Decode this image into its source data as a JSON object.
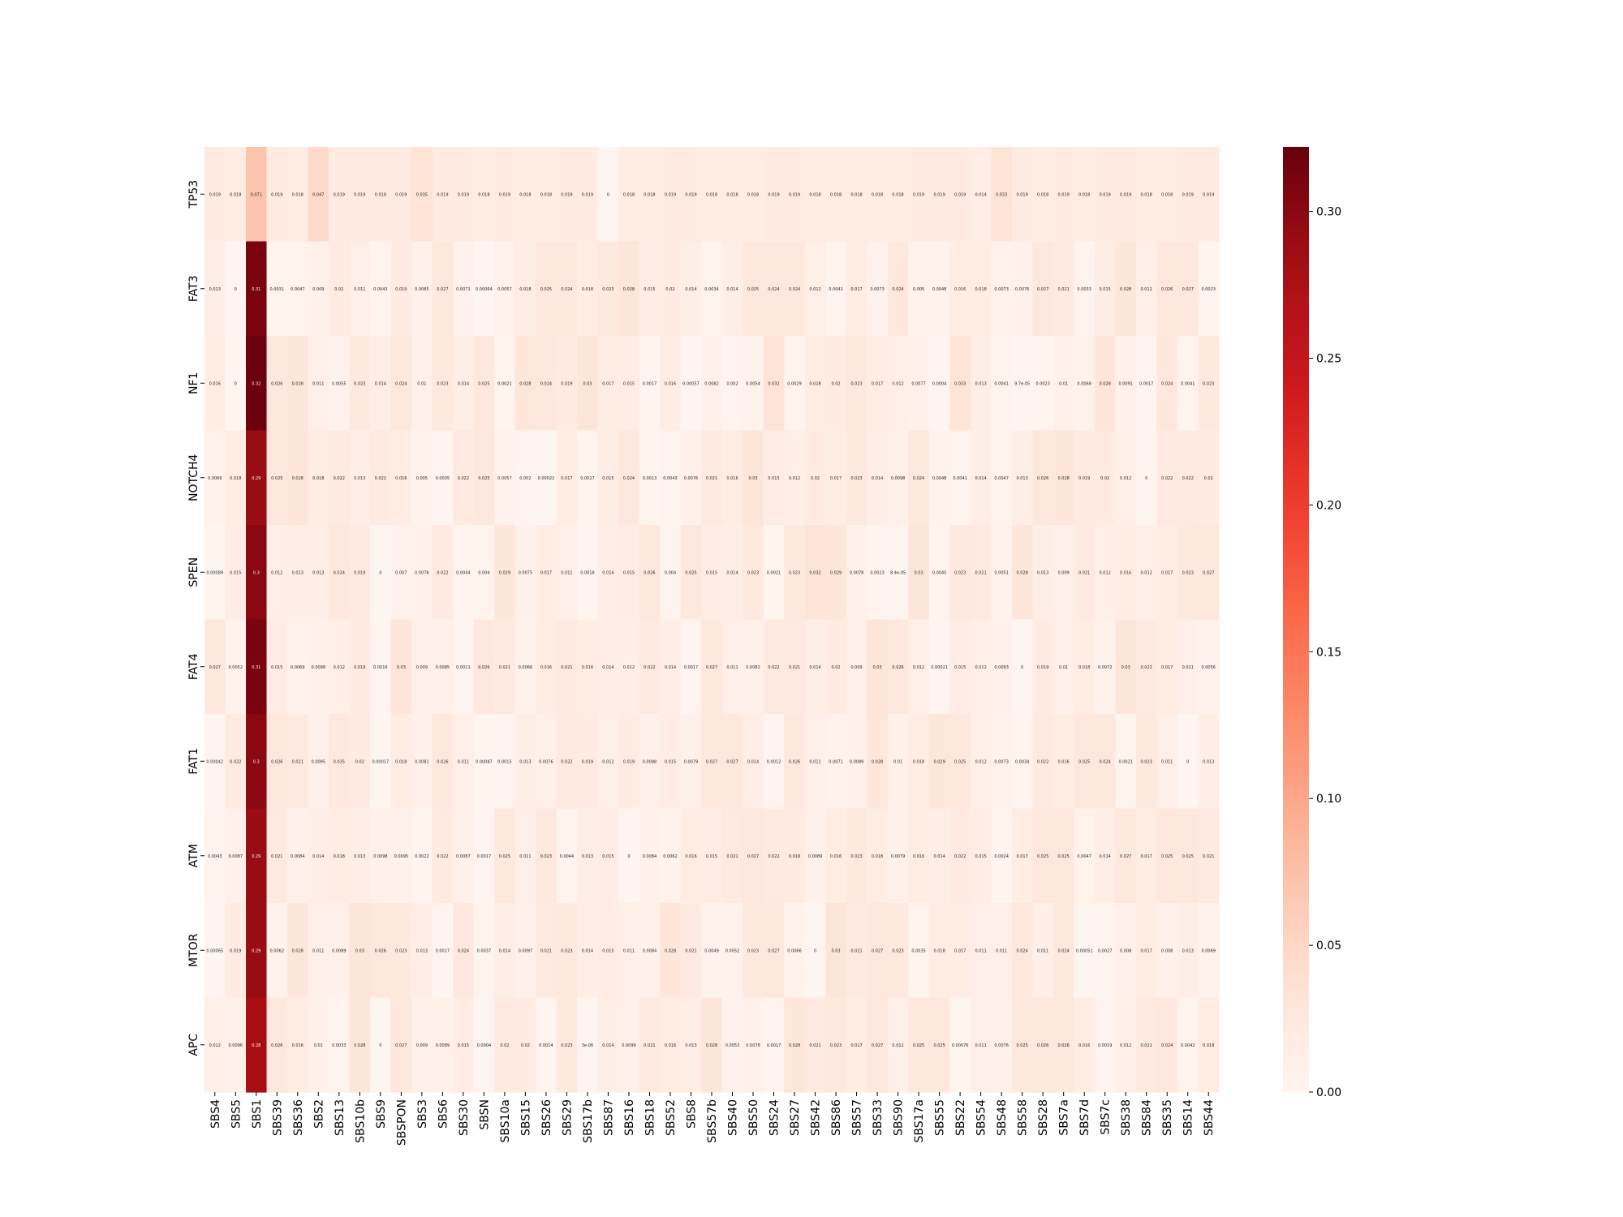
{
  "chart_data": {
    "type": "heatmap",
    "title": "",
    "xlabel": "",
    "ylabel": "",
    "colormap": "Reds",
    "colors": {
      "low": "#fff5f0",
      "high": "#67000d"
    },
    "vmin": 0,
    "vmax": 0.322,
    "colorbar_ticks": [
      "0.00",
      "0.05",
      "0.10",
      "0.15",
      "0.20",
      "0.25",
      "0.30"
    ],
    "colorbar_tick_values": [
      0,
      0.05,
      0.1,
      0.15,
      0.2,
      0.25,
      0.3
    ],
    "x_categories": [
      "SBS4",
      "SBS5",
      "SBS1",
      "SBS39",
      "SBS36",
      "SBS2",
      "SBS13",
      "SBS10b",
      "SBS9",
      "SBSPON",
      "SBS3",
      "SBS6",
      "SBS30",
      "SBSN",
      "SBS10a",
      "SBS15",
      "SBS26",
      "SBS29",
      "SBS17b",
      "SBS87",
      "SBS16",
      "SBS18",
      "SBS52",
      "SBS8",
      "SBS57b",
      "SBS40",
      "SBS50",
      "SBS24",
      "SBS27",
      "SBS42",
      "SBS86",
      "SBS57",
      "SBS33",
      "SBS90",
      "SBS17a",
      "SBS55",
      "SBS22",
      "SBS54",
      "SBS48",
      "SBS58",
      "SBS28",
      "SBS7a",
      "SBS7d",
      "SBS7c",
      "SBS38",
      "SBS84",
      "SBS35",
      "SBS14",
      "SBS44"
    ],
    "y_categories": [
      "TP53",
      "FAT3",
      "NF1",
      "NOTCH4",
      "SPEN",
      "FAT4",
      "FAT1",
      "ATM",
      "MTOR",
      "APC"
    ],
    "values": [
      [
        0.019,
        0.018,
        0.071,
        0.019,
        0.018,
        0.047,
        0.019,
        0.019,
        0.019,
        0.019,
        0.035,
        0.019,
        0.019,
        0.018,
        0.019,
        0.018,
        0.018,
        0.019,
        0.019,
        0,
        0.018,
        0.018,
        0.019,
        0.019,
        0.018,
        0.018,
        0.018,
        0.019,
        0.019,
        0.018,
        0.018,
        0.018,
        0.018,
        0.018,
        0.019,
        0.019,
        0.019,
        0.014,
        0.033,
        0.019,
        0.018,
        0.019,
        0.018,
        0.019,
        0.019,
        0.018,
        0.018,
        0.019,
        0.019
      ],
      [
        0.013,
        0,
        0.31,
        0.0031,
        0.0047,
        0.009,
        0.02,
        0.011,
        0.0043,
        0.019,
        0.0085,
        0.027,
        0.0071,
        0.00064,
        0.0057,
        0.018,
        0.025,
        0.024,
        0.018,
        0.023,
        0.028,
        0.015,
        0.02,
        0.014,
        0.0034,
        0.014,
        0.025,
        0.024,
        0.024,
        0.012,
        0.0041,
        0.017,
        0.0073,
        0.024,
        0.005,
        0.0048,
        0.016,
        0.018,
        0.0073,
        0.0076,
        0.027,
        0.021,
        0.0033,
        0.015,
        0.028,
        0.012,
        0.026,
        0.027,
        0.0023
      ],
      [
        0.016,
        0,
        0.32,
        0.026,
        0.028,
        0.011,
        0.0055,
        0.023,
        0.014,
        0.024,
        0.01,
        0.023,
        0.014,
        0.025,
        0.0021,
        0.028,
        0.024,
        0.019,
        0.03,
        0.017,
        0.015,
        0.0017,
        0.016,
        0.00057,
        0.0082,
        0.002,
        0.0054,
        0.032,
        0.0029,
        0.018,
        0.02,
        0.023,
        0.017,
        0.012,
        0.0077,
        0.0004,
        0.033,
        0.013,
        0.0041,
        9.7e-05,
        0.0023,
        0.01,
        0.0068,
        0.028,
        0.0091,
        0.0017,
        0.024,
        0.0041,
        0.023
      ],
      [
        0.0066,
        0.018,
        0.29,
        0.025,
        0.028,
        0.018,
        0.022,
        0.013,
        0.022,
        0.016,
        0.005,
        0.0005,
        0.022,
        0.025,
        0.0057,
        0.002,
        0.00022,
        0.017,
        0.0027,
        0.015,
        0.024,
        0.0013,
        0.0043,
        0.0076,
        0.021,
        0.016,
        0.03,
        0.015,
        0.012,
        0.02,
        0.017,
        0.023,
        0.014,
        0.0098,
        0.024,
        0.0048,
        0.0041,
        0.014,
        0.0047,
        0.013,
        0.026,
        0.028,
        0.019,
        0.02,
        0.012,
        0,
        0.022,
        0.022,
        0.02
      ],
      [
        0.00089,
        0.015,
        0.3,
        0.012,
        0.013,
        0.013,
        0.024,
        0.019,
        0,
        0.007,
        0.0078,
        0.022,
        0.0044,
        0.004,
        0.029,
        0.0075,
        0.017,
        0.011,
        0.0018,
        0.014,
        0.015,
        0.026,
        0.004,
        0.025,
        0.015,
        0.014,
        0.023,
        0.0021,
        0.023,
        0.032,
        0.029,
        0.0078,
        0.0023,
        8.4e-05,
        0.03,
        0.0045,
        0.023,
        0.021,
        0.0051,
        0.028,
        0.013,
        0.009,
        0.021,
        0.012,
        0.016,
        0.012,
        0.017,
        0.023,
        0.027
      ],
      [
        0.027,
        0.0052,
        0.31,
        0.015,
        0.0069,
        0.0098,
        0.012,
        0.019,
        0.0016,
        0.03,
        0.009,
        0.0085,
        0.0011,
        0.026,
        0.021,
        0.0066,
        0.016,
        0.021,
        0.016,
        0.014,
        0.012,
        0.022,
        0.014,
        0.0017,
        0.027,
        0.011,
        0.0082,
        0.022,
        0.021,
        0.014,
        0.02,
        0.009,
        0.03,
        0.026,
        0.012,
        0.00021,
        0.015,
        0.012,
        0.0093,
        0,
        0.019,
        0.01,
        0.018,
        0.0072,
        0.03,
        0.022,
        0.017,
        0.011,
        0.0056
      ],
      [
        0.00042,
        0.022,
        0.3,
        0.026,
        0.021,
        0.0095,
        0.025,
        0.02,
        0.00017,
        0.018,
        0.0081,
        0.026,
        0.011,
        0.00087,
        0.0015,
        0.013,
        0.0076,
        0.022,
        0.019,
        0.012,
        0.019,
        0.0088,
        0.015,
        0.0079,
        0.027,
        0.027,
        0.014,
        0.0012,
        0.026,
        0.011,
        0.0071,
        0.0089,
        0.028,
        0.01,
        0.018,
        0.029,
        0.025,
        0.012,
        0.0073,
        0.0034,
        0.022,
        0.016,
        0.025,
        0.024,
        0.0021,
        0.023,
        0.011,
        0,
        0.013
      ],
      [
        0.0043,
        0.0087,
        0.29,
        0.021,
        0.0084,
        0.014,
        0.018,
        0.013,
        0.0098,
        0.0095,
        0.0022,
        0.022,
        0.0087,
        0.0017,
        0.025,
        0.011,
        0.023,
        0.0044,
        0.013,
        0.015,
        0,
        0.0084,
        0.0062,
        0.016,
        0.015,
        0.021,
        0.027,
        0.022,
        0.019,
        0.0089,
        0.016,
        0.023,
        0.018,
        0.0079,
        0.016,
        0.014,
        0.022,
        0.015,
        0.0024,
        0.017,
        0.025,
        0.025,
        0.0047,
        0.014,
        0.027,
        0.017,
        0.025,
        0.025,
        0.021
      ],
      [
        0.00065,
        0.019,
        0.29,
        0.0062,
        0.028,
        0.011,
        0.0089,
        0.03,
        0.026,
        0.023,
        0.013,
        0.0017,
        0.024,
        0.0037,
        0.014,
        0.0097,
        0.021,
        0.023,
        0.014,
        0.015,
        0.011,
        0.0084,
        0.028,
        0.021,
        0.0049,
        0.0052,
        0.023,
        0.027,
        0.0066,
        0,
        0.03,
        0.021,
        0.027,
        0.023,
        0.0035,
        0.018,
        0.017,
        0.011,
        0.011,
        0.024,
        0.011,
        0.024,
        0.00051,
        0.0027,
        0.008,
        0.017,
        0.008,
        0.013,
        0.0069
      ],
      [
        0.012,
        0.0096,
        0.28,
        0.026,
        0.016,
        0.01,
        0.0033,
        0.028,
        0,
        0.027,
        0.009,
        0.0089,
        0.015,
        0.0004,
        0.02,
        0.02,
        0.0014,
        0.023,
        3e-06,
        0.014,
        0.0099,
        0.021,
        0.016,
        0.013,
        0.028,
        0.0053,
        0.0078,
        0.0017,
        0.028,
        0.021,
        0.023,
        0.017,
        0.027,
        0.011,
        0.025,
        0.025,
        0.00076,
        0.011,
        0.0076,
        0.025,
        0.026,
        0.026,
        0.016,
        0.0019,
        0.012,
        0.021,
        0.024,
        0.0042,
        0.018
      ]
    ],
    "annotations": [
      [
        "0.019",
        "0.018",
        "0.071",
        "0.019",
        "0.018",
        "0.047",
        "0.019",
        "0.019",
        "0.019",
        "0.019",
        "0.035",
        "0.019",
        "0.019",
        "0.018",
        "0.019",
        "0.018",
        "0.018",
        "0.019",
        "0.019",
        "0",
        "0.018",
        "0.018",
        "0.019",
        "0.019",
        "0.018",
        "0.018",
        "0.018",
        "0.019",
        "0.019",
        "0.018",
        "0.018",
        "0.018",
        "0.018",
        "0.018",
        "0.019",
        "0.019",
        "0.019",
        "0.014",
        "0.033",
        "0.019",
        "0.018",
        "0.019",
        "0.018",
        "0.019",
        "0.019",
        "0.018",
        "0.018",
        "0.019",
        "0.019"
      ],
      [
        "0.013",
        "0",
        "0.31",
        "0.0031",
        "0.0047",
        "0.009",
        "0.02",
        "0.011",
        "0.0043",
        "0.019",
        "0.0085",
        "0.027",
        "0.0071",
        "0.00064",
        "0.0057",
        "0.018",
        "0.025",
        "0.024",
        "0.018",
        "0.023",
        "0.028",
        "0.015",
        "0.02",
        "0.014",
        "0.0034",
        "0.014",
        "0.025",
        "0.024",
        "0.024",
        "0.012",
        "0.0041",
        "0.017",
        "0.0073",
        "0.024",
        "0.005",
        "0.0048",
        "0.016",
        "0.018",
        "0.0073",
        "0.0076",
        "0.027",
        "0.021",
        "0.0033",
        "0.015",
        "0.028",
        "0.012",
        "0.026",
        "0.027",
        "0.0023"
      ],
      [
        "0.016",
        "0",
        "0.32",
        "0.026",
        "0.028",
        "0.011",
        "0.0055",
        "0.023",
        "0.014",
        "0.024",
        "0.01",
        "0.023",
        "0.014",
        "0.025",
        "0.0021",
        "0.028",
        "0.024",
        "0.019",
        "0.03",
        "0.017",
        "0.015",
        "0.0017",
        "0.016",
        "0.00057",
        "0.0082",
        "0.002",
        "0.0054",
        "0.032",
        "0.0029",
        "0.018",
        "0.02",
        "0.023",
        "0.017",
        "0.012",
        "0.0077",
        "0.0004",
        "0.033",
        "0.013",
        "0.0041",
        "9.7e-05",
        "0.0023",
        "0.01",
        "0.0068",
        "0.028",
        "0.0091",
        "0.0017",
        "0.024",
        "0.0041",
        "0.023"
      ],
      [
        "0.0066",
        "0.018",
        "0.29",
        "0.025",
        "0.028",
        "0.018",
        "0.022",
        "0.013",
        "0.022",
        "0.016",
        "0.005",
        "0.0005",
        "0.022",
        "0.025",
        "0.0057",
        "0.002",
        "0.00022",
        "0.017",
        "0.0027",
        "0.015",
        "0.024",
        "0.0013",
        "0.0043",
        "0.0076",
        "0.021",
        "0.016",
        "0.03",
        "0.015",
        "0.012",
        "0.02",
        "0.017",
        "0.023",
        "0.014",
        "0.0098",
        "0.024",
        "0.0048",
        "0.0041",
        "0.014",
        "0.0047",
        "0.013",
        "0.026",
        "0.028",
        "0.019",
        "0.02",
        "0.012",
        "0",
        "0.022",
        "0.022",
        "0.02"
      ],
      [
        "0.00089",
        "0.015",
        "0.3",
        "0.012",
        "0.013",
        "0.013",
        "0.024",
        "0.019",
        "0",
        "0.007",
        "0.0078",
        "0.022",
        "0.0044",
        "0.004",
        "0.029",
        "0.0075",
        "0.017",
        "0.011",
        "0.0018",
        "0.014",
        "0.015",
        "0.026",
        "0.004",
        "0.025",
        "0.015",
        "0.014",
        "0.023",
        "0.0021",
        "0.023",
        "0.032",
        "0.029",
        "0.0078",
        "0.0023",
        "8.4e-05",
        "0.03",
        "0.0045",
        "0.023",
        "0.021",
        "0.0051",
        "0.028",
        "0.013",
        "0.009",
        "0.021",
        "0.012",
        "0.016",
        "0.012",
        "0.017",
        "0.023",
        "0.027"
      ],
      [
        "0.027",
        "0.0052",
        "0.31",
        "0.015",
        "0.0069",
        "0.0098",
        "0.012",
        "0.019",
        "0.0016",
        "0.03",
        "0.009",
        "0.0085",
        "0.0011",
        "0.026",
        "0.021",
        "0.0066",
        "0.016",
        "0.021",
        "0.016",
        "0.014",
        "0.012",
        "0.022",
        "0.014",
        "0.0017",
        "0.027",
        "0.011",
        "0.0082",
        "0.022",
        "0.021",
        "0.014",
        "0.02",
        "0.009",
        "0.03",
        "0.026",
        "0.012",
        "0.00021",
        "0.015",
        "0.012",
        "0.0093",
        "0",
        "0.019",
        "0.01",
        "0.018",
        "0.0072",
        "0.03",
        "0.022",
        "0.017",
        "0.011",
        "0.0056"
      ],
      [
        "0.00042",
        "0.022",
        "0.3",
        "0.026",
        "0.021",
        "0.0095",
        "0.025",
        "0.02",
        "0.00017",
        "0.018",
        "0.0081",
        "0.026",
        "0.011",
        "0.00087",
        "0.0015",
        "0.013",
        "0.0076",
        "0.022",
        "0.019",
        "0.012",
        "0.019",
        "0.0088",
        "0.015",
        "0.0079",
        "0.027",
        "0.027",
        "0.014",
        "0.0012",
        "0.026",
        "0.011",
        "0.0071",
        "0.0089",
        "0.028",
        "0.01",
        "0.018",
        "0.029",
        "0.025",
        "0.012",
        "0.0073",
        "0.0034",
        "0.022",
        "0.016",
        "0.025",
        "0.024",
        "0.0021",
        "0.023",
        "0.011",
        "0",
        "0.013"
      ],
      [
        "0.0043",
        "0.0087",
        "0.29",
        "0.021",
        "0.0084",
        "0.014",
        "0.018",
        "0.013",
        "0.0098",
        "0.0095",
        "0.0022",
        "0.022",
        "0.0087",
        "0.0017",
        "0.025",
        "0.011",
        "0.023",
        "0.0044",
        "0.013",
        "0.015",
        "0",
        "0.0084",
        "0.0062",
        "0.016",
        "0.015",
        "0.021",
        "0.027",
        "0.022",
        "0.019",
        "0.0089",
        "0.016",
        "0.023",
        "0.018",
        "0.0079",
        "0.016",
        "0.014",
        "0.022",
        "0.015",
        "0.0024",
        "0.017",
        "0.025",
        "0.025",
        "0.0047",
        "0.014",
        "0.027",
        "0.017",
        "0.025",
        "0.025",
        "0.021"
      ],
      [
        "0.00065",
        "0.019",
        "0.29",
        "0.0062",
        "0.028",
        "0.011",
        "0.0089",
        "0.03",
        "0.026",
        "0.023",
        "0.013",
        "0.0017",
        "0.024",
        "0.0037",
        "0.014",
        "0.0097",
        "0.021",
        "0.023",
        "0.014",
        "0.015",
        "0.011",
        "0.0084",
        "0.028",
        "0.021",
        "0.0049",
        "0.0052",
        "0.023",
        "0.027",
        "0.0066",
        "0",
        "0.03",
        "0.021",
        "0.027",
        "0.023",
        "0.0035",
        "0.018",
        "0.017",
        "0.011",
        "0.011",
        "0.024",
        "0.011",
        "0.024",
        "0.00051",
        "0.0027",
        "0.008",
        "0.017",
        "0.008",
        "0.013",
        "0.0069"
      ],
      [
        "0.012",
        "0.0096",
        "0.28",
        "0.026",
        "0.016",
        "0.01",
        "0.0033",
        "0.028",
        "0",
        "0.027",
        "0.009",
        "0.0089",
        "0.015",
        "0.0004",
        "0.02",
        "0.02",
        "0.0014",
        "0.023",
        "3e-06",
        "0.014",
        "0.0099",
        "0.021",
        "0.016",
        "0.013",
        "0.028",
        "0.0053",
        "0.0078",
        "0.0017",
        "0.028",
        "0.021",
        "0.023",
        "0.017",
        "0.027",
        "0.011",
        "0.025",
        "0.025",
        "0.00076",
        "0.011",
        "0.0076",
        "0.025",
        "0.026",
        "0.026",
        "0.016",
        "0.0019",
        "0.012",
        "0.021",
        "0.024",
        "0.0042",
        "0.018"
      ]
    ]
  }
}
